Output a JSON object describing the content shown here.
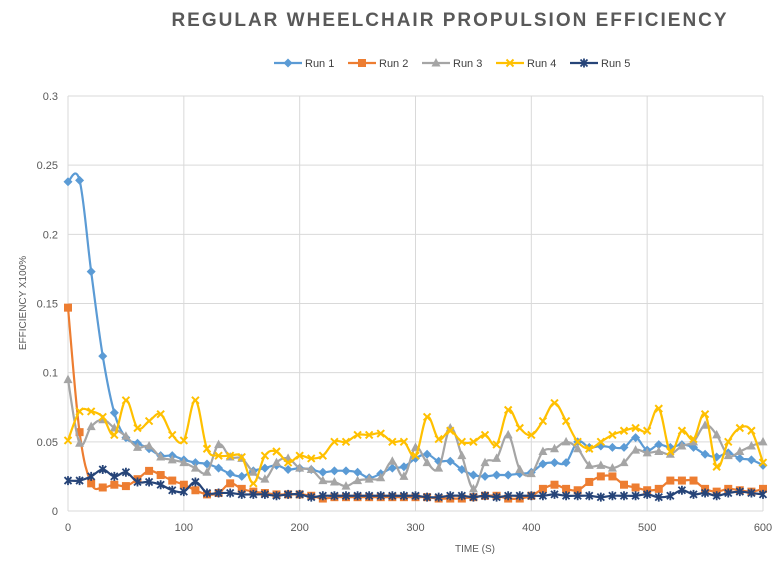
{
  "chart_data": {
    "type": "line",
    "title": "REGULAR WHEELCHAIR PROPULSION EFFICIENCY",
    "xlabel": "TIME (S)",
    "ylabel": "EFFICIENCY X100%",
    "xlim": [
      0,
      600
    ],
    "ylim": [
      0,
      0.3
    ],
    "x_ticks": [
      "0",
      "100",
      "200",
      "300",
      "400",
      "500",
      "600"
    ],
    "y_ticks": [
      "0",
      "0.05",
      "0.1",
      "0.15",
      "0.2",
      "0.25",
      "0.3"
    ],
    "grid": true,
    "legend": "top",
    "x": [
      0,
      10,
      20,
      30,
      40,
      50,
      60,
      70,
      80,
      90,
      100,
      110,
      120,
      130,
      140,
      150,
      160,
      170,
      180,
      190,
      200,
      210,
      220,
      230,
      240,
      250,
      260,
      270,
      280,
      290,
      300,
      310,
      320,
      330,
      340,
      350,
      360,
      370,
      380,
      390,
      400,
      410,
      420,
      430,
      440,
      450,
      460,
      470,
      480,
      490,
      500,
      510,
      520,
      530,
      540,
      550,
      560,
      570,
      580,
      590,
      600
    ],
    "series": [
      {
        "name": "Run 1",
        "color": "#5b9bd5",
        "marker": "diamond",
        "values": [
          0.238,
          0.239,
          0.173,
          0.112,
          0.071,
          0.053,
          0.049,
          0.045,
          0.04,
          0.04,
          0.037,
          0.035,
          0.034,
          0.031,
          0.027,
          0.025,
          0.029,
          0.031,
          0.033,
          0.03,
          0.031,
          0.03,
          0.028,
          0.029,
          0.029,
          0.028,
          0.024,
          0.027,
          0.031,
          0.032,
          0.038,
          0.041,
          0.036,
          0.036,
          0.03,
          0.026,
          0.025,
          0.026,
          0.026,
          0.027,
          0.028,
          0.034,
          0.035,
          0.035,
          0.05,
          0.046,
          0.047,
          0.046,
          0.046,
          0.053,
          0.044,
          0.048,
          0.046,
          0.048,
          0.046,
          0.041,
          0.039,
          0.042,
          0.038,
          0.037,
          0.033
        ]
      },
      {
        "name": "Run 2",
        "color": "#ed7d31",
        "marker": "square",
        "values": [
          0.147,
          0.057,
          0.02,
          0.017,
          0.019,
          0.018,
          0.023,
          0.029,
          0.026,
          0.022,
          0.019,
          0.015,
          0.012,
          0.013,
          0.02,
          0.016,
          0.014,
          0.013,
          0.012,
          0.012,
          0.012,
          0.011,
          0.009,
          0.01,
          0.01,
          0.01,
          0.01,
          0.01,
          0.01,
          0.01,
          0.01,
          0.01,
          0.009,
          0.009,
          0.009,
          0.01,
          0.011,
          0.011,
          0.009,
          0.009,
          0.011,
          0.016,
          0.019,
          0.016,
          0.015,
          0.021,
          0.025,
          0.025,
          0.019,
          0.017,
          0.015,
          0.016,
          0.022,
          0.022,
          0.022,
          0.016,
          0.014,
          0.016,
          0.015,
          0.014,
          0.016
        ]
      },
      {
        "name": "Run 3",
        "color": "#a5a5a5",
        "marker": "triangle",
        "values": [
          0.095,
          0.049,
          0.061,
          0.066,
          0.06,
          0.054,
          0.046,
          0.047,
          0.039,
          0.037,
          0.035,
          0.031,
          0.028,
          0.048,
          0.039,
          0.038,
          0.028,
          0.023,
          0.035,
          0.038,
          0.031,
          0.03,
          0.022,
          0.021,
          0.018,
          0.022,
          0.023,
          0.024,
          0.036,
          0.025,
          0.046,
          0.035,
          0.031,
          0.06,
          0.04,
          0.016,
          0.035,
          0.038,
          0.055,
          0.03,
          0.027,
          0.043,
          0.045,
          0.05,
          0.045,
          0.033,
          0.033,
          0.031,
          0.035,
          0.044,
          0.042,
          0.043,
          0.041,
          0.047,
          0.05,
          0.062,
          0.055,
          0.04,
          0.043,
          0.047,
          0.05
        ]
      },
      {
        "name": "Run 4",
        "color": "#ffc000",
        "marker": "x",
        "values": [
          0.051,
          0.072,
          0.072,
          0.068,
          0.055,
          0.08,
          0.06,
          0.065,
          0.07,
          0.055,
          0.051,
          0.08,
          0.045,
          0.04,
          0.04,
          0.039,
          0.02,
          0.04,
          0.043,
          0.035,
          0.04,
          0.038,
          0.04,
          0.05,
          0.05,
          0.055,
          0.055,
          0.056,
          0.05,
          0.05,
          0.04,
          0.068,
          0.052,
          0.058,
          0.05,
          0.05,
          0.055,
          0.048,
          0.073,
          0.06,
          0.055,
          0.065,
          0.078,
          0.065,
          0.05,
          0.045,
          0.05,
          0.055,
          0.058,
          0.06,
          0.058,
          0.074,
          0.043,
          0.058,
          0.052,
          0.07,
          0.032,
          0.05,
          0.06,
          0.058,
          0.035
        ]
      },
      {
        "name": "Run 5",
        "color": "#264478",
        "marker": "star",
        "values": [
          0.022,
          0.022,
          0.025,
          0.03,
          0.025,
          0.028,
          0.021,
          0.021,
          0.019,
          0.015,
          0.014,
          0.021,
          0.013,
          0.013,
          0.013,
          0.012,
          0.012,
          0.012,
          0.011,
          0.012,
          0.012,
          0.01,
          0.011,
          0.011,
          0.011,
          0.011,
          0.011,
          0.011,
          0.011,
          0.011,
          0.011,
          0.01,
          0.01,
          0.011,
          0.011,
          0.01,
          0.011,
          0.01,
          0.011,
          0.011,
          0.011,
          0.011,
          0.012,
          0.011,
          0.011,
          0.011,
          0.01,
          0.011,
          0.011,
          0.011,
          0.012,
          0.01,
          0.011,
          0.015,
          0.012,
          0.013,
          0.011,
          0.013,
          0.014,
          0.013,
          0.012
        ]
      }
    ]
  }
}
